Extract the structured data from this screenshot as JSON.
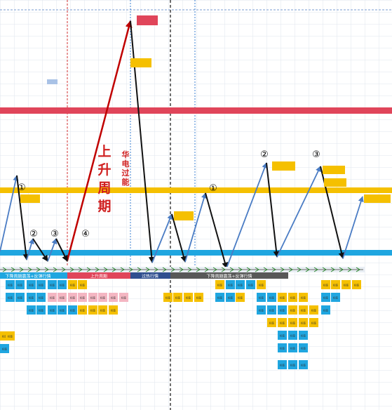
{
  "phase_text": {
    "rising_cycle": "上升周期",
    "huadian_overheat": "华电过能"
  },
  "markers": {
    "one": "①",
    "two": "②",
    "three": "③",
    "four": "④"
  },
  "timeline_labels": {
    "down_cycle_1": "下降周期震荡+反弹行情",
    "up_cycle": "上升周期",
    "overheat": "过热行情",
    "down_cycle_2": "下降周期震荡+反弹行情"
  },
  "box_label_tiny": "标签",
  "colors": {
    "red_band": "#e0455a",
    "yellow_band": "#f5c000",
    "blue_band": "#1fa6e0",
    "up_line": "#4a7cc4",
    "down_line": "#111111",
    "rise_arrow": "#c00000",
    "rising_text": "#d02020",
    "box_yellow": "#f5c000",
    "box_blue": "#1fa6e0",
    "box_pink": "#f4b6c2",
    "box_red": "#e0455a",
    "box_gray": "#585858",
    "box_navy": "#2f4f8f"
  }
}
